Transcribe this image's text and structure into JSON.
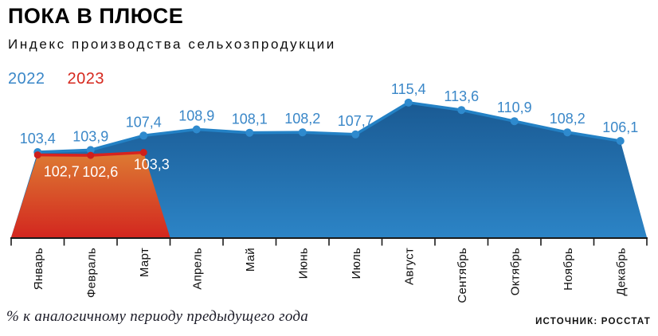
{
  "header": {
    "title": "ПОКА В ПЛЮСЕ",
    "subtitle": "Индекс производства сельхозпродукции"
  },
  "legend": [
    {
      "label": "2022",
      "color": "#3a87c8"
    },
    {
      "label": "2023",
      "color": "#d6281e"
    }
  ],
  "chart_data": {
    "type": "area",
    "title": "ПОКА В ПЛЮСЕ",
    "subtitle": "Индекс производства сельхозпродукции",
    "note": "% к аналогичному периоду предыдущего года",
    "source": "ИСТОЧНИК: РОССТАТ",
    "categories": [
      "Январь",
      "Февраль",
      "Март",
      "Апрель",
      "Май",
      "Июнь",
      "Июль",
      "Август",
      "Сентябрь",
      "Октябрь",
      "Ноябрь",
      "Декабрь"
    ],
    "grid": false,
    "legend_position": "top-left",
    "y_baseline": 82.7,
    "ylim": [
      82.7,
      124
    ],
    "series": [
      {
        "name": "2022",
        "values": [
          103.4,
          103.9,
          107.4,
          108.9,
          108.1,
          108.2,
          107.7,
          115.4,
          113.6,
          110.9,
          108.2,
          106.1
        ],
        "labels": [
          "103,4",
          "103,9",
          "107,4",
          "108,9",
          "108,1",
          "108,2",
          "107,7",
          "115,4",
          "113,6",
          "110,9",
          "108,2",
          "106,1"
        ],
        "line_color": "#2381c5",
        "dot_color": "#2e8ace",
        "fill_top": "#1a5a93",
        "fill_bottom": "#2c84c6",
        "label_color": "#3a87c8"
      },
      {
        "name": "2023",
        "values": [
          102.7,
          102.6,
          103.3
        ],
        "labels": [
          "102,7",
          "102,6",
          "103,3"
        ],
        "line_color": "#d7231f",
        "dot_color": "#ce1f1c",
        "fill_top": "#dd7b33",
        "fill_bottom": "#d3271f",
        "label_color": "#ffffff"
      }
    ],
    "axis_color": "#1a1a1a",
    "month_label_color": "#111111"
  },
  "footer": {
    "note": "% к аналогичному периоду предыдущего года",
    "source": "ИСТОЧНИК: РОССТАТ"
  }
}
